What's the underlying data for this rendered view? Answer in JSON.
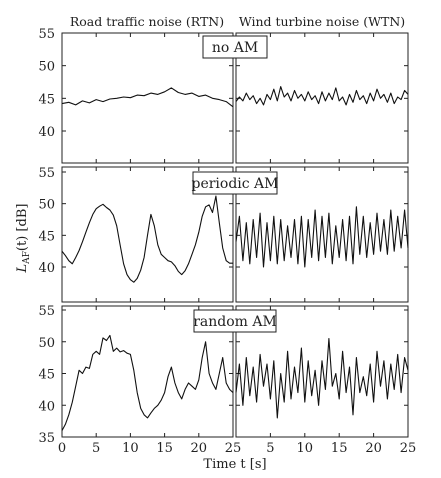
{
  "chart_data": {
    "type": "line",
    "column_titles": [
      "Road traffic noise (RTN)",
      "Wind turbine noise (WTN)"
    ],
    "row_labels": [
      "no AM",
      "periodic AM",
      "random AM"
    ],
    "ylabel_prefix": "L",
    "ylabel_subscript": "AF",
    "ylabel_suffix": "(t) [dB]",
    "xlabel": "Time t [s]",
    "xlim": [
      0,
      25
    ],
    "xticks": [
      0,
      5,
      10,
      15,
      20,
      25
    ],
    "y_ticks_by_row": [
      [
        40,
        45,
        50,
        55
      ],
      [
        40,
        45,
        50,
        55
      ],
      [
        35,
        40,
        45,
        50,
        55
      ]
    ],
    "y_range_by_row": [
      [
        35,
        55
      ],
      [
        35,
        55
      ],
      [
        35,
        55
      ]
    ],
    "panels": [
      {
        "row": 0,
        "col": 0,
        "name": "RTN, no AM",
        "x": [
          0,
          1,
          2,
          3,
          4,
          5,
          6,
          7,
          8,
          9,
          10,
          11,
          12,
          13,
          14,
          15,
          16,
          17,
          18,
          19,
          20,
          21,
          22,
          23,
          24,
          25
        ],
        "y": [
          44.2,
          44.4,
          44.0,
          44.6,
          44.3,
          44.8,
          44.5,
          44.9,
          45.0,
          45.2,
          45.1,
          45.5,
          45.4,
          45.8,
          45.6,
          46.0,
          46.6,
          45.9,
          45.6,
          45.8,
          45.3,
          45.5,
          45.0,
          44.8,
          44.5,
          43.7
        ]
      },
      {
        "row": 0,
        "col": 1,
        "name": "WTN, no AM",
        "x": [
          0,
          0.5,
          1,
          1.5,
          2,
          2.5,
          3,
          3.5,
          4,
          4.5,
          5,
          5.5,
          6,
          6.5,
          7,
          7.5,
          8,
          8.5,
          9,
          9.5,
          10,
          10.5,
          11,
          11.5,
          12,
          12.5,
          13,
          13.5,
          14,
          14.5,
          15,
          15.5,
          16,
          16.5,
          17,
          17.5,
          18,
          18.5,
          19,
          19.5,
          20,
          20.5,
          21,
          21.5,
          22,
          22.5,
          23,
          23.5,
          24,
          24.5,
          25
        ],
        "y": [
          44.5,
          45.2,
          44.6,
          45.8,
          44.8,
          45.4,
          44.2,
          45.0,
          44.0,
          45.6,
          44.8,
          46.4,
          44.6,
          46.8,
          45.2,
          45.8,
          44.6,
          46.2,
          45.0,
          45.6,
          44.6,
          46.0,
          44.8,
          45.4,
          44.2,
          46.0,
          44.6,
          45.8,
          44.8,
          46.6,
          44.6,
          45.2,
          44.0,
          45.6,
          44.4,
          46.2,
          44.8,
          45.4,
          44.2,
          45.8,
          44.6,
          46.4,
          45.0,
          45.6,
          44.4,
          45.8,
          44.2,
          45.2,
          44.8,
          46.2,
          45.6
        ]
      },
      {
        "row": 1,
        "col": 0,
        "name": "RTN, periodic AM",
        "x": [
          0,
          0.5,
          1,
          1.5,
          2,
          2.5,
          3,
          3.5,
          4,
          4.5,
          5,
          5.5,
          6,
          6.5,
          7,
          7.5,
          8,
          8.5,
          9,
          9.5,
          10,
          10.5,
          11,
          11.5,
          12,
          12.5,
          13,
          13.5,
          14,
          14.5,
          15,
          15.5,
          16,
          16.5,
          17,
          17.5,
          18,
          18.5,
          19,
          19.5,
          20,
          20.5,
          21,
          21.5,
          22,
          22.5,
          23,
          23.5,
          24,
          24.5,
          25
        ],
        "y": [
          42.5,
          41.8,
          41.0,
          40.5,
          41.5,
          42.6,
          44.0,
          45.5,
          47.0,
          48.3,
          49.2,
          49.6,
          49.9,
          49.4,
          49.0,
          48.2,
          46.5,
          43.5,
          40.5,
          38.8,
          38.0,
          37.6,
          38.2,
          39.5,
          41.5,
          45.0,
          48.3,
          46.5,
          43.5,
          42.0,
          41.5,
          41.0,
          40.8,
          40.2,
          39.3,
          38.8,
          39.4,
          40.5,
          42.0,
          43.5,
          45.5,
          48.0,
          49.5,
          49.8,
          48.6,
          51.2,
          47.0,
          43.0,
          41.0,
          40.6,
          40.6
        ]
      },
      {
        "row": 1,
        "col": 1,
        "name": "WTN, periodic AM",
        "x": [
          0,
          0.5,
          1,
          1.5,
          2,
          2.5,
          3,
          3.5,
          4,
          4.5,
          5,
          5.5,
          6,
          6.5,
          7,
          7.5,
          8,
          8.5,
          9,
          9.5,
          10,
          10.5,
          11,
          11.5,
          12,
          12.5,
          13,
          13.5,
          14,
          14.5,
          15,
          15.5,
          16,
          16.5,
          17,
          17.5,
          18,
          18.5,
          19,
          19.5,
          20,
          20.5,
          21,
          21.5,
          22,
          22.5,
          23,
          23.5,
          24,
          24.5,
          25
        ],
        "y": [
          44.0,
          48.0,
          41.0,
          47.0,
          40.5,
          47.5,
          41.5,
          48.5,
          40.0,
          47.0,
          41.0,
          48.0,
          40.5,
          47.5,
          41.0,
          46.5,
          41.5,
          47.5,
          40.5,
          48.0,
          40.0,
          47.5,
          41.5,
          49.0,
          41.0,
          48.0,
          41.5,
          48.5,
          40.5,
          46.5,
          41.5,
          47.5,
          41.0,
          48.0,
          40.5,
          49.5,
          42.0,
          48.0,
          41.5,
          47.0,
          42.0,
          48.5,
          42.5,
          47.5,
          42.0,
          49.0,
          42.5,
          48.0,
          43.0,
          49.0,
          43.0
        ]
      },
      {
        "row": 2,
        "col": 0,
        "name": "RTN, random AM",
        "x": [
          0,
          0.5,
          1,
          1.5,
          2,
          2.5,
          3,
          3.5,
          4,
          4.5,
          5,
          5.5,
          6,
          6.5,
          7,
          7.5,
          8,
          8.5,
          9,
          9.5,
          10,
          10.5,
          11,
          11.5,
          12,
          12.5,
          13,
          13.5,
          14,
          14.5,
          15,
          15.5,
          16,
          16.5,
          17,
          17.5,
          18,
          18.5,
          19,
          19.5,
          20,
          20.5,
          21,
          21.5,
          22,
          22.5,
          23,
          23.5,
          24,
          24.5,
          25
        ],
        "y": [
          36.0,
          37.0,
          38.5,
          40.5,
          43.0,
          45.5,
          45.0,
          46.0,
          45.8,
          48.0,
          48.5,
          48.0,
          50.6,
          50.2,
          51.0,
          48.5,
          49.0,
          48.4,
          48.6,
          48.2,
          48.0,
          45.5,
          42.0,
          39.5,
          38.5,
          38.0,
          38.8,
          39.5,
          40.0,
          40.8,
          42.0,
          44.5,
          46.0,
          43.5,
          42.0,
          41.0,
          42.5,
          43.5,
          43.0,
          42.5,
          44.0,
          47.5,
          50.0,
          45.0,
          43.5,
          42.5,
          45.0,
          47.5,
          43.5,
          42.5,
          42.0
        ]
      },
      {
        "row": 2,
        "col": 1,
        "name": "WTN, random AM",
        "x": [
          0,
          0.5,
          1,
          1.5,
          2,
          2.5,
          3,
          3.5,
          4,
          4.5,
          5,
          5.5,
          6,
          6.5,
          7,
          7.5,
          8,
          8.5,
          9,
          9.5,
          10,
          10.5,
          11,
          11.5,
          12,
          12.5,
          13,
          13.5,
          14,
          14.5,
          15,
          15.5,
          16,
          16.5,
          17,
          17.5,
          18,
          18.5,
          19,
          19.5,
          20,
          20.5,
          21,
          21.5,
          22,
          22.5,
          23,
          23.5,
          24,
          24.5,
          25
        ],
        "y": [
          42.0,
          46.5,
          40.0,
          47.5,
          41.5,
          46.0,
          40.5,
          48.0,
          43.0,
          46.5,
          41.0,
          47.0,
          38.0,
          45.0,
          40.5,
          48.5,
          41.0,
          46.0,
          42.0,
          49.0,
          40.5,
          47.0,
          41.5,
          45.5,
          40.0,
          47.0,
          42.5,
          50.5,
          43.0,
          45.0,
          41.0,
          48.5,
          42.0,
          46.0,
          38.5,
          47.5,
          42.0,
          44.5,
          41.5,
          46.5,
          40.5,
          48.5,
          43.0,
          47.0,
          41.0,
          46.5,
          42.5,
          48.0,
          42.0,
          47.5,
          45.5
        ]
      }
    ]
  }
}
